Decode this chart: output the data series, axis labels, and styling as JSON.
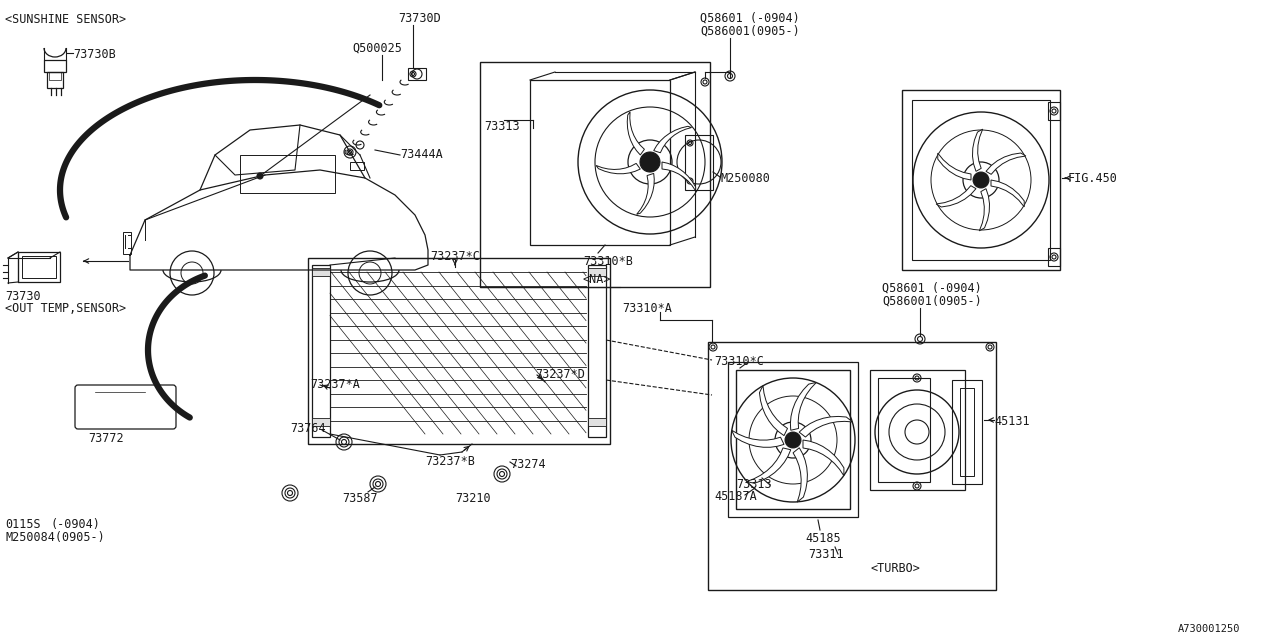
{
  "bg_color": "#ffffff",
  "lc": "#1a1a1a",
  "fig_ref": "A730001250",
  "fs": 8.5,
  "parts": {
    "sunshine_label": "<SUNSHINE SENSOR>",
    "p73730B": "73730B",
    "p73730D": "73730D",
    "pQ500025": "Q500025",
    "p73444A": "73444A",
    "p73730": "73730",
    "out_temp_label": "<OUT TEMP,SENSOR>",
    "p73772": "73772",
    "p73237C": "73237*C",
    "p73237A": "73237*A",
    "p73237D": "73237*D",
    "p73237B": "73237*B",
    "p73764": "73764",
    "p73587": "73587",
    "p73274": "73274",
    "p73210": "73210",
    "p0115S": "0115S",
    "p0115S_note": "(-0904)",
    "pM250084": "M250084(0905-)",
    "pQ58601_t1": "Q58601 (-0904)",
    "pQ586001_t2": "Q586001(0905-)",
    "p73313_na": "73313",
    "pM250080": "M250080",
    "p73310B": "73310*B",
    "na_label": "<NA>",
    "p73310A": "73310*A",
    "pFIG450": "FIG.450",
    "pQ58601_m1": "Q58601 (-0904)",
    "pQ586001_m2": "Q586001(0905-)",
    "p73310C": "73310*C",
    "p73313_t": "73313",
    "p45131": "45131",
    "p45187A": "45187A",
    "p45185": "45185",
    "p73311": "73311",
    "turbo_label": "<TURBO>"
  }
}
